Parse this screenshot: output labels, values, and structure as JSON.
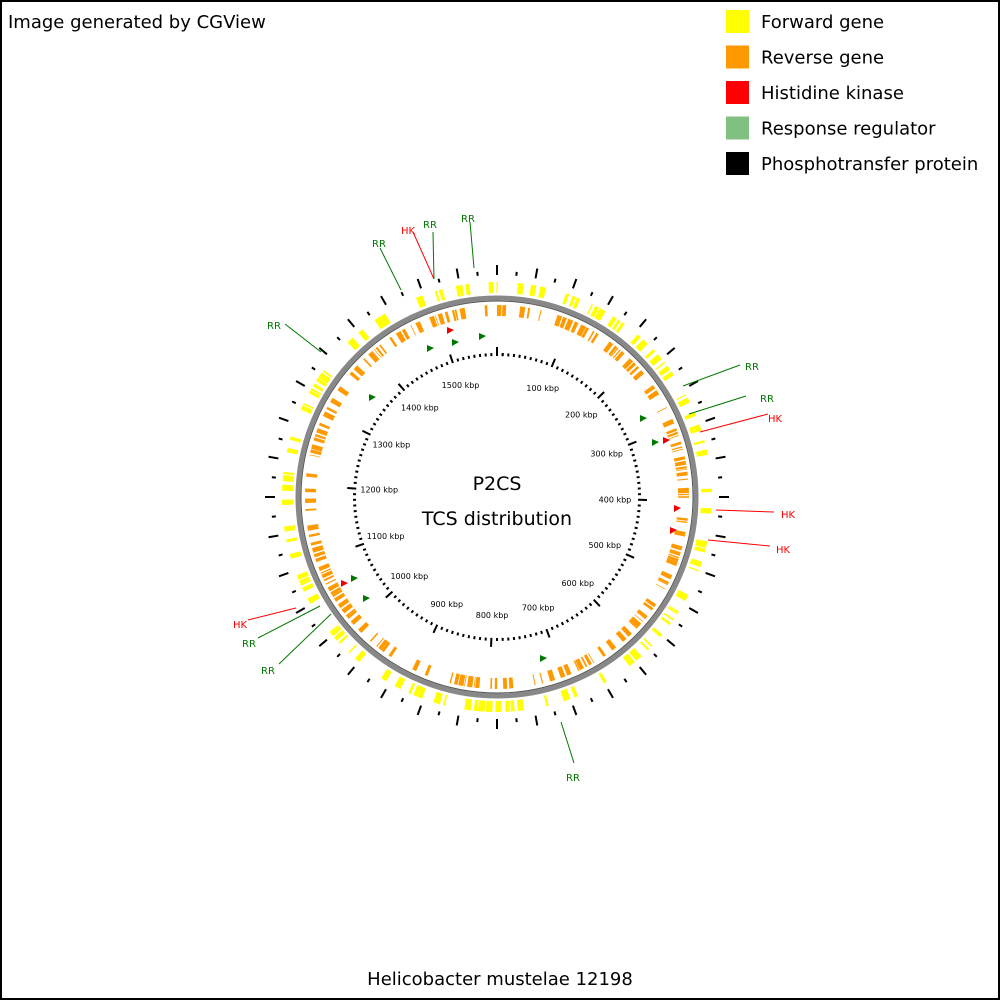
{
  "header": {
    "credit": "Image generated by CGView"
  },
  "legend": [
    {
      "label": "Forward gene",
      "color": "#ffff00"
    },
    {
      "label": "Reverse gene",
      "color": "#ff9900"
    },
    {
      "label": "Histidine kinase",
      "color": "#ff0000"
    },
    {
      "label": "Response regulator",
      "color": "#80c080"
    },
    {
      "label": "Phosphotransfer protein",
      "color": "#000000"
    }
  ],
  "center": {
    "title": "P2CS",
    "subtitle": "TCS distribution"
  },
  "scale_labels": [
    "100 kbp",
    "200 kbp",
    "300 kbp",
    "400 kbp",
    "500 kbp",
    "600 kbp",
    "700 kbp",
    "800 kbp",
    "900 kbp",
    "1000 kbp",
    "1100 kbp",
    "1200 kbp",
    "1300 kbp",
    "1400 kbp",
    "1500 kbp"
  ],
  "features": [
    {
      "label": "RR",
      "color": "#007700"
    },
    {
      "label": "RR",
      "color": "#007700"
    },
    {
      "label": "RR",
      "color": "#007700"
    },
    {
      "label": "HK",
      "color": "#ff0000"
    },
    {
      "label": "HK",
      "color": "#ff0000"
    },
    {
      "label": "HK",
      "color": "#ff0000"
    },
    {
      "label": "RR",
      "color": "#007700"
    },
    {
      "label": "RR",
      "color": "#007700"
    },
    {
      "label": "RR",
      "color": "#007700"
    },
    {
      "label": "HK",
      "color": "#ff0000"
    },
    {
      "label": "RR",
      "color": "#007700"
    },
    {
      "label": "RR",
      "color": "#007700"
    },
    {
      "label": "HK",
      "color": "#ff0000"
    },
    {
      "label": "RR",
      "color": "#007700"
    }
  ],
  "footer": {
    "organism": "Helicobacter mustelae 12198"
  }
}
